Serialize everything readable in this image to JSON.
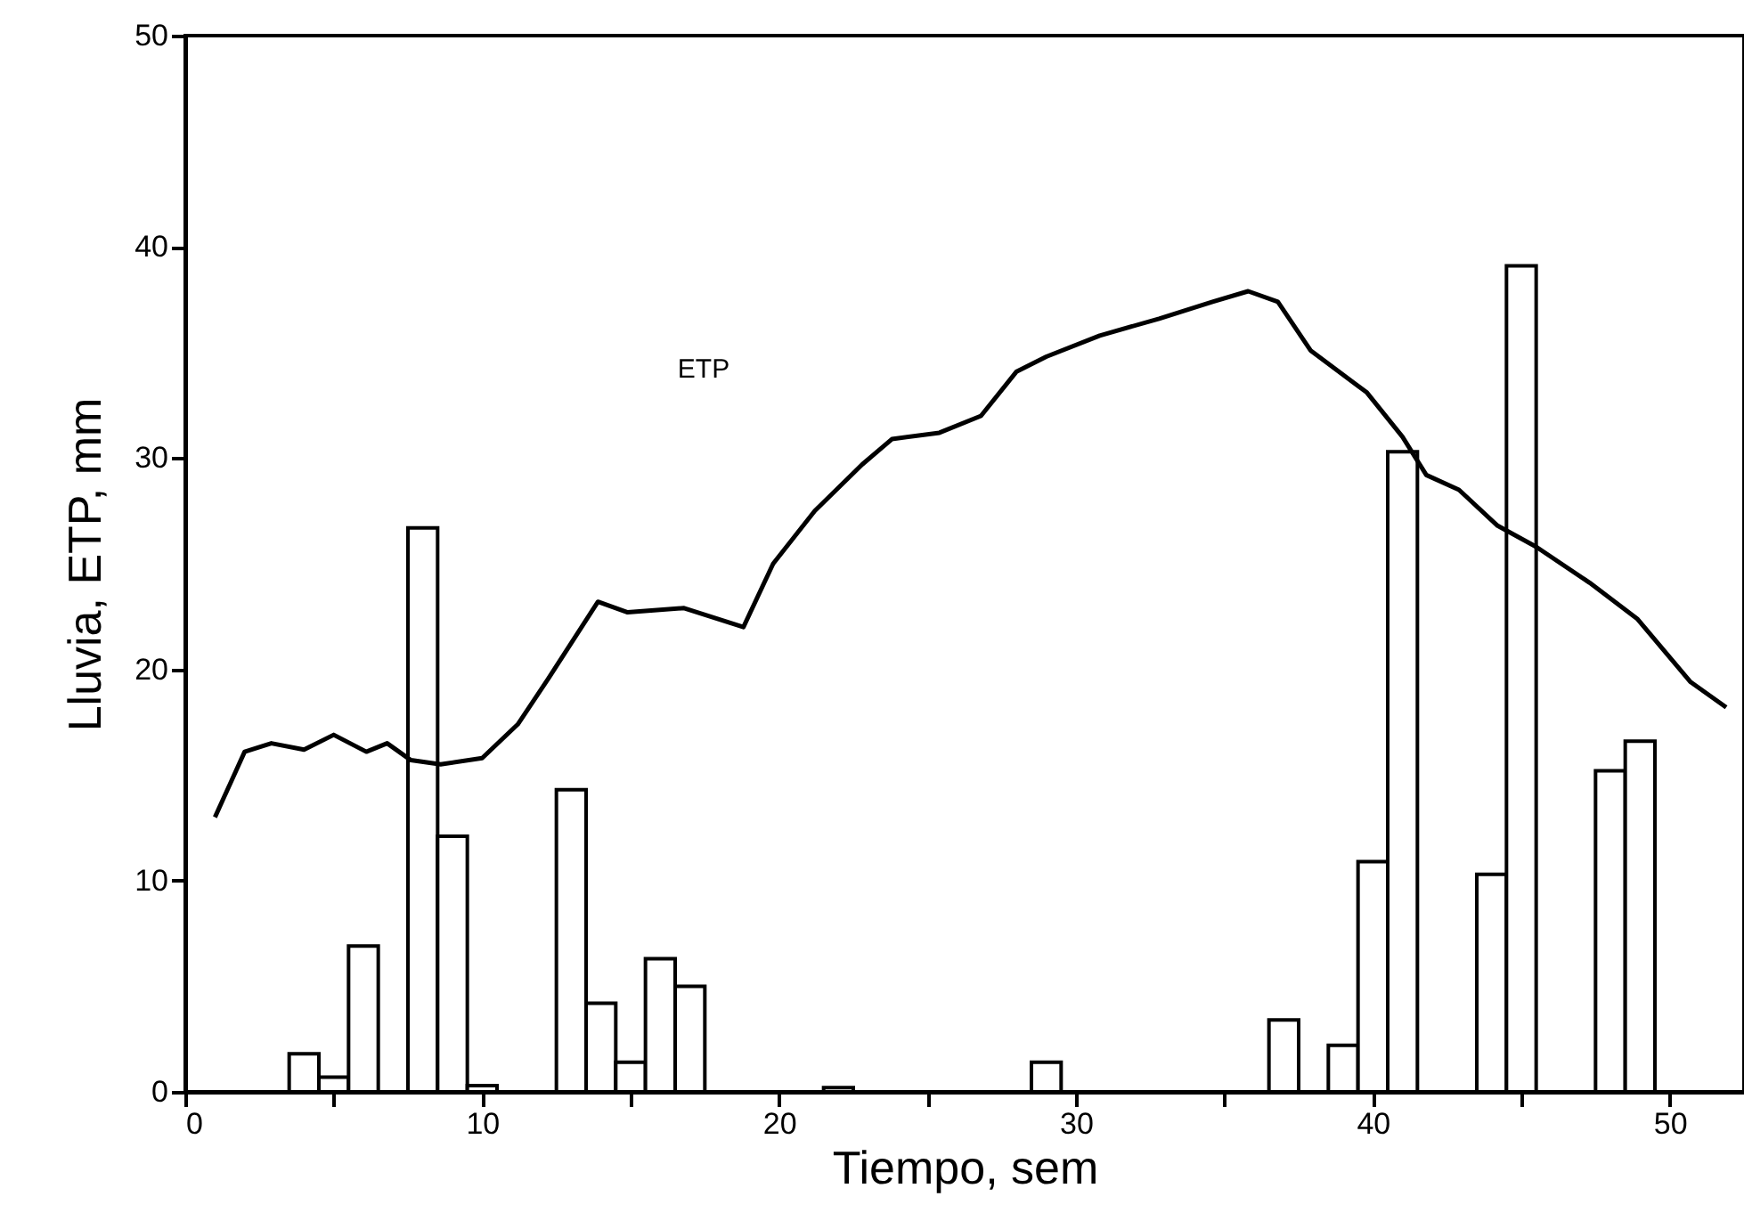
{
  "chart_data": {
    "type": "histogram",
    "xlabel": "Tiempo, sem",
    "ylabel": "Lluvia, ETP, mm",
    "bins": [
      3.5,
      4.5,
      5.5,
      6.5,
      7.5,
      8.5,
      9.5,
      10.5,
      11.5,
      12.5,
      13.5,
      14.5,
      15.5,
      16.5,
      17.5,
      18.5,
      19.5,
      20.5,
      21.5,
      22.5,
      23.5,
      24.5,
      25.5,
      26.5,
      27.5,
      28.5,
      29.5,
      30.5,
      31.5,
      32.5,
      33.5,
      34.5,
      35.5,
      36.5,
      37.5,
      38.5,
      39.5,
      40.5,
      41.5,
      42.5,
      43.5,
      44.5,
      45.5,
      46.5,
      47.5,
      48.5,
      49.5
    ],
    "values": [
      1.8,
      0.7,
      6.9,
      0,
      26.7,
      12.1,
      0.3,
      0,
      0,
      14.3,
      4.2,
      1.4,
      6.3,
      5.0,
      0,
      0,
      0,
      0,
      0.2,
      0,
      0,
      0,
      0,
      0,
      0,
      1.4,
      0,
      0,
      0,
      0,
      0,
      0,
      0,
      3.4,
      0,
      2.2,
      10.9,
      30.3,
      0,
      0,
      10.3,
      39.1,
      0,
      0,
      15.2,
      16.6
    ],
    "color": "#000000",
    "series": [
      {
        "type": "line",
        "name": "ETP",
        "color": "#000000",
        "x": [
          1.0,
          2.0,
          2.9,
          4.0,
          5.0,
          6.1,
          6.8,
          7.6,
          8.6,
          10.0,
          11.2,
          12.2,
          13.9,
          14.9,
          16.8,
          18.8,
          19.8,
          21.2,
          22.8,
          23.8,
          25.4,
          26.8,
          28.0,
          29.0,
          30.8,
          32.8,
          34.6,
          35.8,
          36.8,
          37.9,
          39.8,
          41.0,
          41.8,
          42.9,
          44.2,
          45.5,
          47.3,
          48.9,
          50.7,
          51.9
        ],
        "values": [
          13.0,
          16.1,
          16.5,
          16.2,
          16.9,
          16.1,
          16.5,
          15.7,
          15.5,
          15.8,
          17.4,
          19.5,
          23.2,
          22.7,
          22.9,
          22.0,
          25.0,
          27.5,
          29.7,
          30.9,
          31.2,
          32.0,
          34.1,
          34.8,
          35.8,
          36.6,
          37.4,
          37.9,
          37.4,
          35.1,
          33.1,
          31.0,
          29.2,
          28.5,
          26.8,
          25.8,
          24.1,
          22.4,
          19.4,
          18.2
        ]
      }
    ],
    "xlim": [
      0,
      52.5
    ],
    "xticks": [
      0,
      {
        "value": 5,
        "label": null
      },
      10,
      {
        "value": 15,
        "label": null
      },
      20,
      {
        "value": 25,
        "label": null
      },
      30,
      {
        "value": 35,
        "label": null
      },
      40,
      {
        "value": 45,
        "label": null
      },
      50
    ],
    "ylim": [
      0,
      50
    ],
    "yticks": [
      0,
      10,
      20,
      30,
      40,
      50
    ],
    "grid": false
  }
}
